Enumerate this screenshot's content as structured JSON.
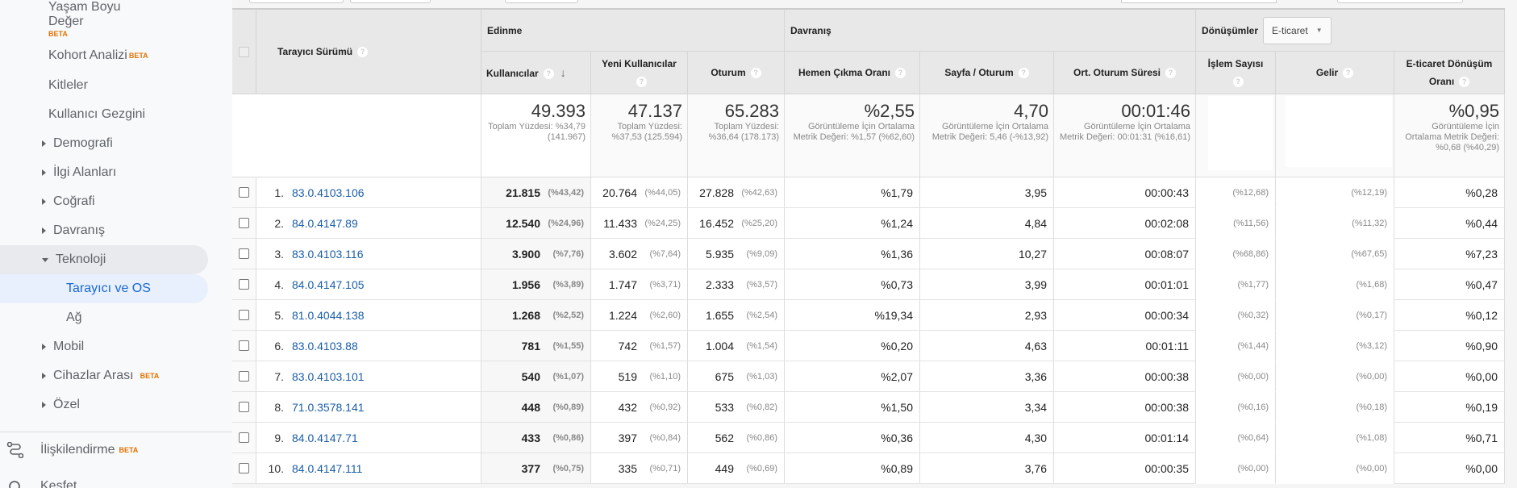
{
  "sidebar": {
    "items": [
      {
        "label": "Yaşam Boyu",
        "label2": "Değer",
        "beta": "BETA"
      },
      {
        "label": "Kohort Analizi",
        "beta": "BETA"
      },
      {
        "label": "Kitleler"
      },
      {
        "label": "Kullanıcı Gezgini"
      },
      {
        "label": "Demografi",
        "expandable": true
      },
      {
        "label": "İlgi Alanları",
        "expandable": true
      },
      {
        "label": "Coğrafi",
        "expandable": true
      },
      {
        "label": "Davranış",
        "expandable": true
      },
      {
        "label": "Teknoloji",
        "expanded": true
      },
      {
        "label": "Tarayıcı ve OS",
        "selected": true
      },
      {
        "label": "Ağ"
      },
      {
        "label": "Mobil",
        "expandable": true
      },
      {
        "label": "Cihazlar Arası",
        "beta": "BETA",
        "expandable": true
      },
      {
        "label": "Özel",
        "expandable": true
      }
    ],
    "bottom": [
      {
        "label": "İlişkilendirme",
        "beta": "BETA",
        "icon": "attribution-icon"
      },
      {
        "label": "Keşfet",
        "icon": "discover-icon"
      }
    ],
    "accent": "#1967d2"
  },
  "table": {
    "dimension_header": "Tarayıcı Sürümü",
    "groups": {
      "acquisition": "Edinme",
      "behavior": "Davranış",
      "conversions": "Dönüşümler",
      "conversion_select": "E-ticaret"
    },
    "columns": [
      "Kullanıcılar",
      "Yeni Kullanıcılar",
      "Oturum",
      "Hemen Çıkma Oranı",
      "Sayfa / Oturum",
      "Ort. Oturum Süresi",
      "İşlem Sayısı",
      "Gelir",
      "E-ticaret Dönüşüm Oranı"
    ],
    "totals": [
      {
        "value": "49.393",
        "sub": "Toplam Yüzdesi: %34,79 (141.967)"
      },
      {
        "value": "47.137",
        "sub": "Toplam Yüzdesi: %37,53 (125.594)"
      },
      {
        "value": "65.283",
        "sub": "Toplam Yüzdesi: %36,64 (178.173)"
      },
      {
        "value": "%2,55",
        "sub": "Görüntüleme İçin Ortalama Metrik Değeri: %1,57 (%62,60)"
      },
      {
        "value": "4,70",
        "sub": "Görüntüleme İçin Ortalama Metrik Değeri: 5,46 (-%13,92)"
      },
      {
        "value": "00:01:46",
        "sub": "Görüntüleme İçin Ortalama Metrik Değeri: 00:01:31 (%16,61)"
      },
      {
        "value": "",
        "sub": ""
      },
      {
        "value": "",
        "sub": ""
      },
      {
        "value": "%0,95",
        "sub": "Görüntüleme İçin Ortalama Metrik Değeri: %0,68 (%40,29)"
      }
    ],
    "rows": [
      {
        "n": "1.",
        "name": "83.0.4103.106",
        "users": "21.815",
        "users_p": "(%43,42)",
        "new": "20.764",
        "new_p": "(%44,05)",
        "sess": "27.828",
        "sess_p": "(%42,63)",
        "bounce": "%1,79",
        "pps": "3,95",
        "dur": "00:00:43",
        "tx_p": "(%12,68)",
        "rev_p": "(%12,19)",
        "cr": "%0,28"
      },
      {
        "n": "2.",
        "name": "84.0.4147.89",
        "users": "12.540",
        "users_p": "(%24,96)",
        "new": "11.433",
        "new_p": "(%24,25)",
        "sess": "16.452",
        "sess_p": "(%25,20)",
        "bounce": "%1,24",
        "pps": "4,84",
        "dur": "00:02:08",
        "tx_p": "(%11,56)",
        "rev_p": "(%11,32)",
        "cr": "%0,44"
      },
      {
        "n": "3.",
        "name": "83.0.4103.116",
        "users": "3.900",
        "users_p": "(%7,76)",
        "new": "3.602",
        "new_p": "(%7,64)",
        "sess": "5.935",
        "sess_p": "(%9,09)",
        "bounce": "%1,36",
        "pps": "10,27",
        "dur": "00:08:07",
        "tx_p": "(%68,86)",
        "rev_p": "(%67,65)",
        "cr": "%7,23"
      },
      {
        "n": "4.",
        "name": "84.0.4147.105",
        "users": "1.956",
        "users_p": "(%3,89)",
        "new": "1.747",
        "new_p": "(%3,71)",
        "sess": "2.333",
        "sess_p": "(%3,57)",
        "bounce": "%0,73",
        "pps": "3,99",
        "dur": "00:01:01",
        "tx_p": "(%1,77)",
        "rev_p": "(%1,68)",
        "cr": "%0,47"
      },
      {
        "n": "5.",
        "name": "81.0.4044.138",
        "users": "1.268",
        "users_p": "(%2,52)",
        "new": "1.224",
        "new_p": "(%2,60)",
        "sess": "1.655",
        "sess_p": "(%2,54)",
        "bounce": "%19,34",
        "pps": "2,93",
        "dur": "00:00:34",
        "tx_p": "(%0,32)",
        "rev_p": "(%0,17)",
        "cr": "%0,12"
      },
      {
        "n": "6.",
        "name": "83.0.4103.88",
        "users": "781",
        "users_p": "(%1,55)",
        "new": "742",
        "new_p": "(%1,57)",
        "sess": "1.004",
        "sess_p": "(%1,54)",
        "bounce": "%0,20",
        "pps": "4,63",
        "dur": "00:01:11",
        "tx_p": "(%1,44)",
        "rev_p": "(%3,12)",
        "cr": "%0,90"
      },
      {
        "n": "7.",
        "name": "83.0.4103.101",
        "users": "540",
        "users_p": "(%1,07)",
        "new": "519",
        "new_p": "(%1,10)",
        "sess": "675",
        "sess_p": "(%1,03)",
        "bounce": "%2,07",
        "pps": "3,36",
        "dur": "00:00:38",
        "tx_p": "(%0,00)",
        "rev_p": "(%0,00)",
        "cr": "%0,00"
      },
      {
        "n": "8.",
        "name": "71.0.3578.141",
        "users": "448",
        "users_p": "(%0,89)",
        "new": "432",
        "new_p": "(%0,92)",
        "sess": "533",
        "sess_p": "(%0,82)",
        "bounce": "%1,50",
        "pps": "3,34",
        "dur": "00:00:38",
        "tx_p": "(%0,16)",
        "rev_p": "(%0,18)",
        "cr": "%0,19"
      },
      {
        "n": "9.",
        "name": "84.0.4147.71",
        "users": "433",
        "users_p": "(%0,86)",
        "new": "397",
        "new_p": "(%0,84)",
        "sess": "562",
        "sess_p": "(%0,86)",
        "bounce": "%0,36",
        "pps": "4,30",
        "dur": "00:01:14",
        "tx_p": "(%0,64)",
        "rev_p": "(%1,08)",
        "cr": "%0,71"
      },
      {
        "n": "10.",
        "name": "84.0.4147.111",
        "users": "377",
        "users_p": "(%0,75)",
        "new": "335",
        "new_p": "(%0,71)",
        "sess": "449",
        "sess_p": "(%0,69)",
        "bounce": "%0,89",
        "pps": "3,76",
        "dur": "00:00:35",
        "tx_p": "(%0,00)",
        "rev_p": "(%0,00)",
        "cr": "%0,00"
      }
    ]
  }
}
